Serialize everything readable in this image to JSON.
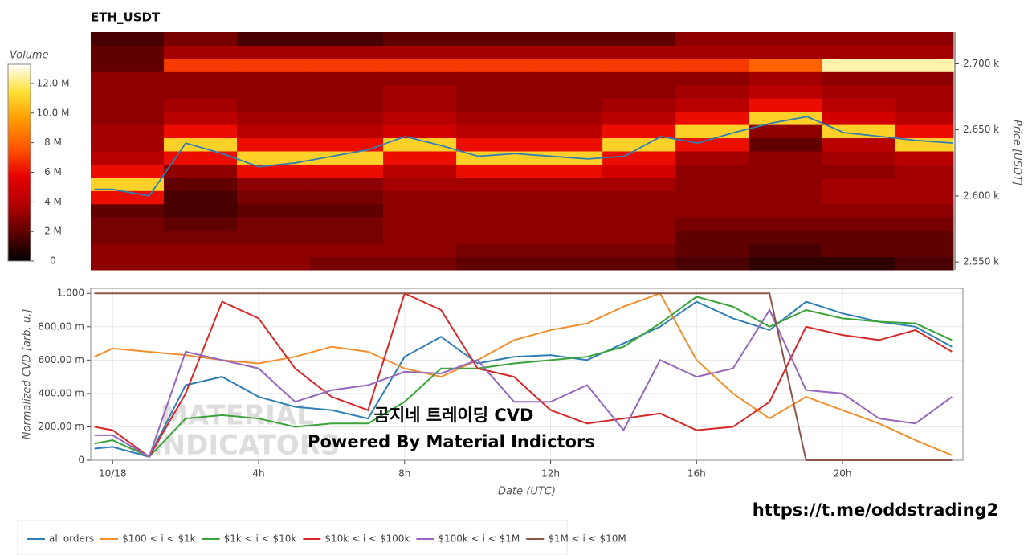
{
  "chart_data": [
    {
      "type": "heatmap",
      "title": "ETH_USDT",
      "colorbar_label": "Volume",
      "y_label": "Price [USDT]",
      "xlim": [
        -0.6,
        23.0
      ],
      "ylim": [
        2544,
        2724
      ],
      "yticks": [
        {
          "value": 2550,
          "label": "2.550 k"
        },
        {
          "value": 2600,
          "label": "2.600 k"
        },
        {
          "value": 2650,
          "label": "2.650 k"
        },
        {
          "value": 2700,
          "label": "2.700 k"
        }
      ],
      "x_bins": [
        -0.6,
        1.4,
        3.4,
        5.4,
        7.4,
        9.4,
        11.4,
        13.4,
        15.4,
        17.4,
        19.4,
        21.4,
        23.0
      ],
      "y_bins": [
        2544,
        2554,
        2564,
        2574,
        2584,
        2594,
        2604,
        2614,
        2624,
        2634,
        2644,
        2654,
        2664,
        2674,
        2684,
        2694,
        2704,
        2714,
        2724
      ],
      "zlim": [
        0,
        13300000
      ],
      "zticks": [
        0,
        {
          "value": 2000000,
          "label": "2 M"
        },
        {
          "value": 4000000,
          "label": "4 M"
        },
        {
          "value": 6000000,
          "label": "6 M"
        },
        {
          "value": 8000000,
          "label": "8 M"
        },
        {
          "value": 10000000,
          "label": "10.0 M"
        },
        {
          "value": 12000000,
          "label": "12.0 M"
        }
      ],
      "colorscale": [
        "#000000",
        "#5c0000",
        "#b30000",
        "#e60000",
        "#ff5500",
        "#ff9900",
        "#ffe033",
        "#ffffff"
      ],
      "z": [
        [
          3000000,
          3000000,
          3000000,
          2500000,
          2500000,
          2000000,
          2000000,
          2000000,
          1500000,
          1000000,
          1000000,
          1500000
        ],
        [
          3000000,
          3000000,
          3000000,
          3000000,
          3000000,
          2500000,
          2500000,
          2500000,
          2000000,
          1500000,
          2000000,
          2000000
        ],
        [
          2500000,
          2500000,
          2500000,
          2500000,
          3000000,
          3000000,
          3000000,
          3000000,
          2000000,
          2000000,
          2000000,
          2000000
        ],
        [
          2500000,
          2000000,
          2500000,
          2500000,
          3000000,
          3000000,
          3000000,
          3000000,
          2500000,
          2500000,
          2500000,
          2500000
        ],
        [
          2000000,
          1500000,
          2000000,
          2000000,
          3000000,
          3000000,
          3000000,
          3000000,
          3000000,
          3000000,
          3000000,
          3000000
        ],
        [
          6000000,
          1500000,
          2500000,
          2500000,
          3000000,
          3000000,
          3000000,
          3000000,
          3000000,
          3000000,
          3500000,
          3500000
        ],
        [
          11000000,
          2000000,
          3000000,
          3000000,
          3500000,
          3500000,
          3500000,
          3500000,
          3000000,
          3000000,
          3500000,
          3500000
        ],
        [
          6000000,
          3000000,
          6000000,
          6000000,
          4000000,
          6000000,
          6000000,
          5000000,
          3000000,
          3000000,
          3000000,
          3500000
        ],
        [
          4000000,
          6000000,
          11000000,
          11000000,
          6000000,
          11000000,
          11000000,
          6000000,
          3500000,
          3000000,
          3500000,
          4000000
        ],
        [
          3500000,
          11000000,
          6000000,
          6000000,
          11000000,
          6000000,
          6000000,
          11000000,
          6000000,
          2000000,
          4000000,
          11000000
        ],
        [
          3500000,
          6000000,
          4000000,
          4000000,
          5000000,
          4000000,
          4000000,
          6000000,
          11000000,
          3000000,
          11000000,
          6000000
        ],
        [
          3000000,
          4000000,
          3500000,
          3500000,
          4000000,
          3500000,
          3500000,
          4000000,
          6000000,
          11000000,
          5000000,
          4000000
        ],
        [
          3000000,
          3500000,
          3000000,
          3000000,
          3500000,
          3000000,
          3000000,
          3500000,
          4000000,
          6000000,
          4000000,
          3500000
        ],
        [
          3000000,
          3000000,
          3000000,
          3000000,
          3500000,
          3000000,
          3000000,
          3000000,
          3500000,
          4000000,
          3500000,
          3500000
        ],
        [
          3000000,
          3000000,
          3000000,
          3000000,
          3000000,
          3000000,
          3000000,
          3000000,
          3000000,
          3500000,
          3000000,
          3000000
        ],
        [
          2000000,
          7000000,
          7000000,
          7000000,
          7000000,
          7000000,
          7000000,
          7000000,
          7000000,
          8000000,
          12500000,
          12500000
        ],
        [
          2000000,
          3500000,
          3500000,
          3500000,
          3500000,
          3500000,
          3500000,
          3500000,
          3500000,
          3500000,
          3500000,
          3500000
        ],
        [
          1500000,
          2500000,
          1500000,
          1500000,
          2000000,
          2000000,
          2000000,
          2000000,
          3000000,
          3000000,
          3000000,
          3000000
        ]
      ],
      "line": {
        "color": "#2f7fb5",
        "x": [
          -0.5,
          0,
          1,
          2,
          3,
          4,
          5,
          6,
          7,
          8,
          9,
          10,
          11,
          12,
          13,
          14,
          15,
          16,
          17,
          18,
          19,
          20,
          21,
          22,
          23
        ],
        "values": [
          2605,
          2605,
          2600,
          2640,
          2632,
          2622,
          2625,
          2630,
          2635,
          2645,
          2638,
          2630,
          2632,
          2630,
          2628,
          2630,
          2645,
          2640,
          2648,
          2655,
          2660,
          2648,
          2645,
          2642,
          2640
        ]
      }
    },
    {
      "type": "line",
      "x_label": "Date (UTC)",
      "y_label": "Normalized CVD [arb. u.]",
      "grid": true,
      "legend": "bottom",
      "xlim": [
        -0.6,
        23.3
      ],
      "ylim": [
        0,
        1.03
      ],
      "xticks": [
        {
          "value": 0,
          "label": "10/18"
        },
        {
          "value": 4,
          "label": "4h"
        },
        {
          "value": 8,
          "label": "8h"
        },
        {
          "value": 12,
          "label": "12h"
        },
        {
          "value": 16,
          "label": "16h"
        },
        {
          "value": 20,
          "label": "20h"
        }
      ],
      "yticks": [
        0,
        {
          "value": 0.2,
          "label": "200.00 m"
        },
        {
          "value": 0.4,
          "label": "400.00 m"
        },
        {
          "value": 0.6,
          "label": "600.00 m"
        },
        {
          "value": 0.8,
          "label": "800.00 m"
        },
        {
          "value": 1.0,
          "label": "1.000"
        }
      ],
      "x": [
        -0.5,
        0,
        1,
        2,
        3,
        4,
        5,
        6,
        7,
        8,
        9,
        10,
        11,
        12,
        13,
        14,
        15,
        16,
        17,
        18,
        19,
        20,
        21,
        22,
        23
      ],
      "series": [
        {
          "name": "all orders",
          "color": "#2f7fb5",
          "values": [
            0.07,
            0.08,
            0.02,
            0.45,
            0.5,
            0.38,
            0.32,
            0.3,
            0.25,
            0.62,
            0.74,
            0.58,
            0.62,
            0.63,
            0.6,
            0.7,
            0.8,
            0.95,
            0.85,
            0.78,
            0.95,
            0.88,
            0.83,
            0.8,
            0.68
          ]
        },
        {
          "name": "$100 < i < $1k",
          "color": "#f28e2b",
          "values": [
            0.62,
            0.67,
            0.65,
            0.63,
            0.6,
            0.58,
            0.62,
            0.68,
            0.65,
            0.55,
            0.5,
            0.6,
            0.72,
            0.78,
            0.82,
            0.92,
            1.0,
            0.6,
            0.4,
            0.25,
            0.38,
            0.3,
            0.22,
            0.12,
            0.03
          ]
        },
        {
          "name": "$1k < i < $10k",
          "color": "#3aa33a",
          "values": [
            0.1,
            0.12,
            0.02,
            0.25,
            0.27,
            0.25,
            0.2,
            0.22,
            0.22,
            0.35,
            0.55,
            0.55,
            0.58,
            0.6,
            0.62,
            0.68,
            0.82,
            0.98,
            0.92,
            0.8,
            0.9,
            0.85,
            0.83,
            0.82,
            0.72
          ]
        },
        {
          "name": "$10k < i < $100k",
          "color": "#d62728",
          "values": [
            0.2,
            0.18,
            0.02,
            0.4,
            0.95,
            0.85,
            0.55,
            0.38,
            0.3,
            1.0,
            0.9,
            0.55,
            0.5,
            0.3,
            0.22,
            0.25,
            0.28,
            0.18,
            0.2,
            0.35,
            0.8,
            0.75,
            0.72,
            0.78,
            0.65
          ]
        },
        {
          "name": "$100k < i < $1M",
          "color": "#9467bd",
          "values": [
            0.15,
            0.15,
            0.02,
            0.65,
            0.6,
            0.55,
            0.35,
            0.42,
            0.45,
            0.53,
            0.52,
            0.6,
            0.35,
            0.35,
            0.45,
            0.18,
            0.6,
            0.5,
            0.55,
            0.9,
            0.42,
            0.4,
            0.25,
            0.22,
            0.38
          ]
        },
        {
          "name": "$1M < i < $10M",
          "color": "#8c564b",
          "values": [
            1.0,
            1.0,
            1.0,
            1.0,
            1.0,
            1.0,
            1.0,
            1.0,
            1.0,
            1.0,
            1.0,
            1.0,
            1.0,
            1.0,
            1.0,
            1.0,
            1.0,
            1.0,
            1.0,
            1.0,
            0,
            0,
            0,
            0,
            0
          ]
        }
      ],
      "annotations": [
        "MATERIAL",
        "INDICATORS",
        "곰지네 트레이딩 CVD",
        "Powered By Material Indictors",
        "https://t.me/oddstrading2"
      ]
    }
  ]
}
